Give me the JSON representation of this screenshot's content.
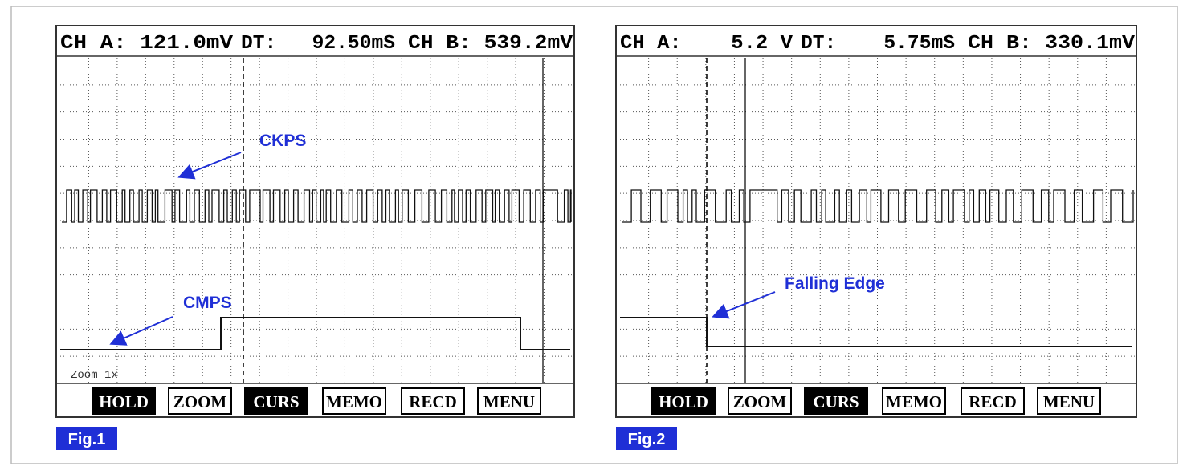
{
  "figures": [
    {
      "header": {
        "ch_a": "CH A: 121.0mV",
        "dt": "DT:   92.50mS",
        "ch_b": "CH B: 539.2mV"
      },
      "labels": [
        "CKPS",
        "CMPS"
      ],
      "zoom": "Zoom 1x",
      "buttons": [
        "HOLD",
        "ZOOM",
        "CURS",
        "MEMO",
        "RECD",
        "MENU"
      ],
      "caption": "Fig.1"
    },
    {
      "header": {
        "ch_a": "CH A:    5.2 V",
        "dt": "DT:    5.75mS",
        "ch_b": "CH B: 330.1mV"
      },
      "labels": [
        "Falling Edge"
      ],
      "buttons": [
        "HOLD",
        "ZOOM",
        "CURS",
        "MEMO",
        "RECD",
        "MENU"
      ],
      "caption": "Fig.2"
    }
  ]
}
